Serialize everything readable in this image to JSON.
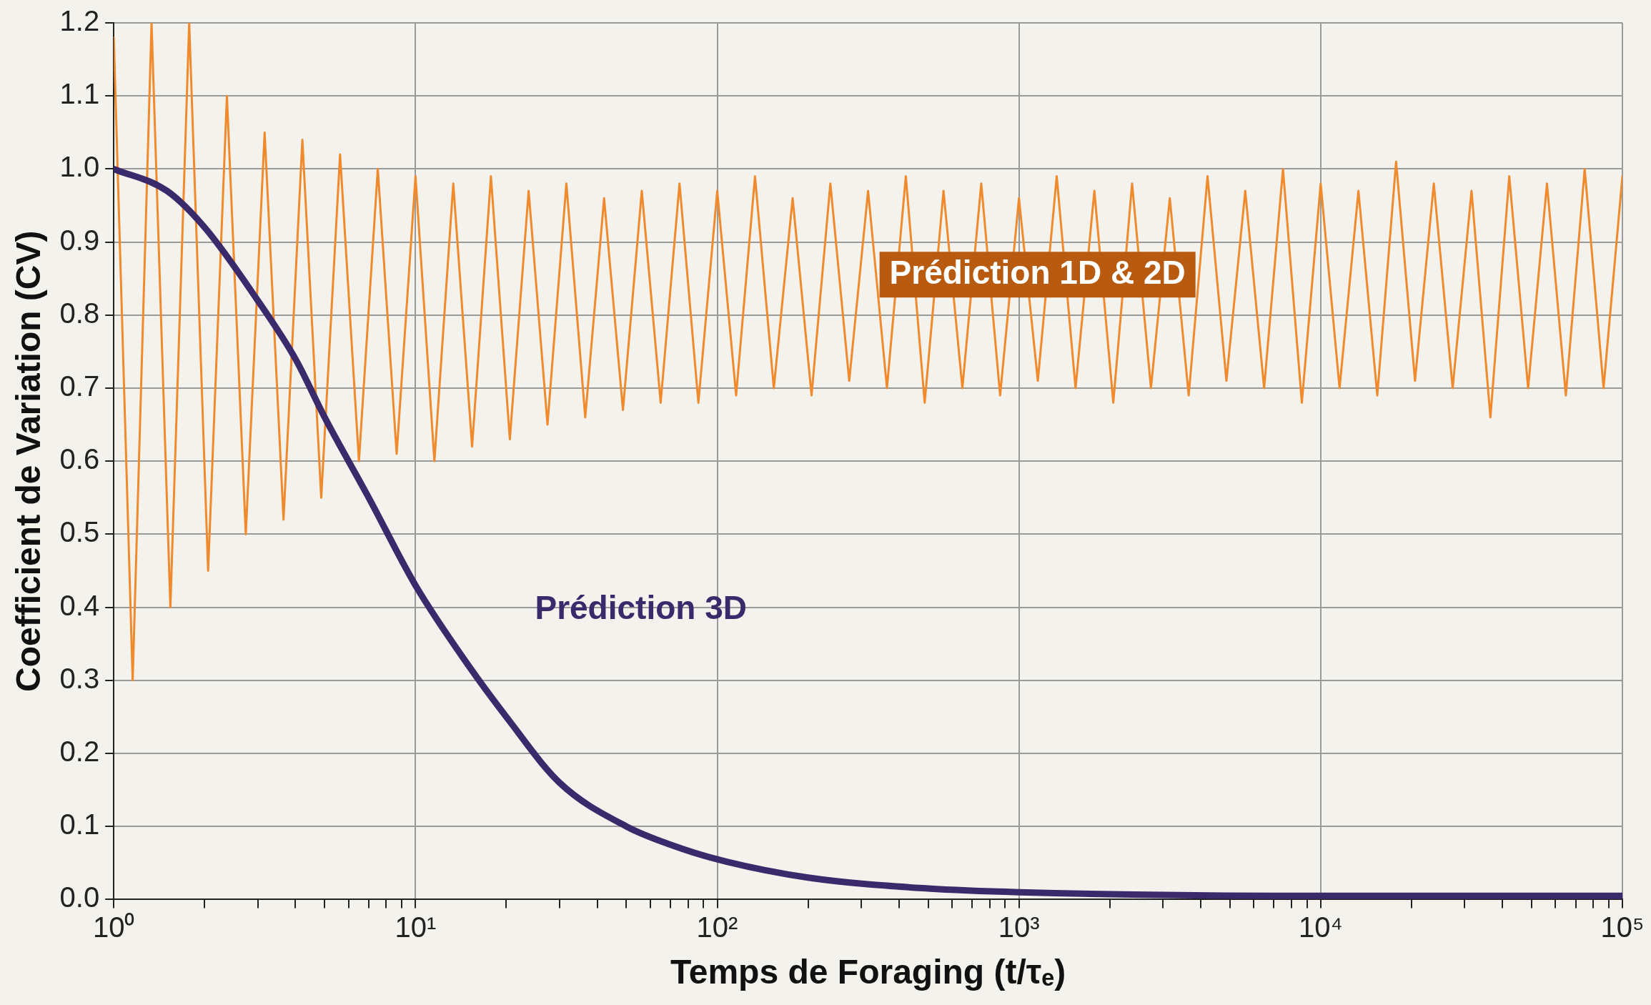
{
  "chart_data": {
    "type": "line",
    "xlabel": "Temps de Foraging (t/τₑ)",
    "ylabel": "Coefficient de Variation (CV)",
    "log": "x",
    "xlim": [
      1,
      100000
    ],
    "xticks": [
      {
        "value": 1,
        "label": "10⁰"
      },
      {
        "value": 2,
        "label": null
      },
      {
        "value": 3,
        "label": null
      },
      {
        "value": 4,
        "label": null
      },
      {
        "value": 5,
        "label": null
      },
      {
        "value": 6,
        "label": null
      },
      {
        "value": 7,
        "label": null
      },
      {
        "value": 8,
        "label": null
      },
      {
        "value": 9,
        "label": null
      },
      {
        "value": 10,
        "label": "10¹"
      },
      {
        "value": 20,
        "label": null
      },
      {
        "value": 30,
        "label": null
      },
      {
        "value": 40,
        "label": null
      },
      {
        "value": 50,
        "label": null
      },
      {
        "value": 60,
        "label": null
      },
      {
        "value": 70,
        "label": null
      },
      {
        "value": 80,
        "label": null
      },
      {
        "value": 90,
        "label": null
      },
      {
        "value": 100,
        "label": "10²"
      },
      {
        "value": 200,
        "label": null
      },
      {
        "value": 300,
        "label": null
      },
      {
        "value": 400,
        "label": null
      },
      {
        "value": 500,
        "label": null
      },
      {
        "value": 600,
        "label": null
      },
      {
        "value": 700,
        "label": null
      },
      {
        "value": 800,
        "label": null
      },
      {
        "value": 900,
        "label": null
      },
      {
        "value": 1000,
        "label": "10³"
      },
      {
        "value": 2000,
        "label": null
      },
      {
        "value": 3000,
        "label": null
      },
      {
        "value": 4000,
        "label": null
      },
      {
        "value": 5000,
        "label": null
      },
      {
        "value": 6000,
        "label": null
      },
      {
        "value": 7000,
        "label": null
      },
      {
        "value": 8000,
        "label": null
      },
      {
        "value": 9000,
        "label": null
      },
      {
        "value": 10000,
        "label": "10⁴"
      },
      {
        "value": 20000,
        "label": null
      },
      {
        "value": 30000,
        "label": null
      },
      {
        "value": 40000,
        "label": null
      },
      {
        "value": 50000,
        "label": null
      },
      {
        "value": 60000,
        "label": null
      },
      {
        "value": 70000,
        "label": null
      },
      {
        "value": 80000,
        "label": null
      },
      {
        "value": 90000,
        "label": null
      },
      {
        "value": 100000,
        "label": "10⁵"
      }
    ],
    "ylim": [
      0,
      1.2
    ],
    "yticks": [
      {
        "value": 0,
        "label": "0.0"
      },
      {
        "value": 0.1,
        "label": "0.1"
      },
      {
        "value": 0.2,
        "label": "0.2"
      },
      {
        "value": 0.3,
        "label": "0.3"
      },
      {
        "value": 0.4,
        "label": "0.4"
      },
      {
        "value": 0.5,
        "label": "0.5"
      },
      {
        "value": 0.6,
        "label": "0.6"
      },
      {
        "value": 0.7,
        "label": "0.7"
      },
      {
        "value": 0.8,
        "label": "0.8"
      },
      {
        "value": 0.9,
        "label": "0.9"
      },
      {
        "value": 1,
        "label": "1.0"
      },
      {
        "value": 1.1,
        "label": "1.1"
      },
      {
        "value": 1.2,
        "label": "1.2"
      }
    ],
    "grid": true,
    "legend": false,
    "marker": "none",
    "line_style": "solid",
    "x": [
      1,
      1.155,
      1.334,
      1.54,
      1.778,
      2.054,
      2.371,
      2.738,
      3.162,
      3.652,
      4.217,
      4.87,
      5.623,
      6.494,
      7.499,
      8.66,
      10,
      11.55,
      13.34,
      15.4,
      17.78,
      20.54,
      23.71,
      27.38,
      31.62,
      36.52,
      42.17,
      48.7,
      56.23,
      64.94,
      74.99,
      86.6,
      100,
      115.5,
      133.4,
      154,
      177.8,
      205.4,
      237.1,
      273.8,
      316.2,
      365.2,
      421.7,
      487,
      562.3,
      649.4,
      749.9,
      866,
      1000,
      1155,
      1334,
      1540,
      1778,
      2054,
      2371,
      2738,
      3162,
      3652,
      4217,
      4870,
      5623,
      6494,
      7499,
      8660,
      10000,
      11550,
      13340,
      15400,
      17780,
      20540,
      23710,
      27380,
      31620,
      36520,
      42170,
      48700,
      56230,
      64940,
      74990,
      86600,
      100000
    ],
    "series": [
      {
        "name": "Prédiction 1D & 2D",
        "color": "#f08a2c",
        "values": [
          1.18,
          0.3,
          1.2,
          0.4,
          1.2,
          0.45,
          1.1,
          0.5,
          1.05,
          0.52,
          1.04,
          0.55,
          1.02,
          0.6,
          1,
          0.61,
          0.99,
          0.6,
          0.98,
          0.62,
          0.99,
          0.63,
          0.97,
          0.65,
          0.98,
          0.66,
          0.96,
          0.67,
          0.97,
          0.68,
          0.98,
          0.68,
          0.97,
          0.69,
          0.99,
          0.7,
          0.96,
          0.69,
          0.98,
          0.71,
          0.97,
          0.7,
          0.99,
          0.68,
          0.97,
          0.7,
          0.98,
          0.69,
          0.96,
          0.71,
          0.99,
          0.7,
          0.97,
          0.68,
          0.98,
          0.7,
          0.96,
          0.69,
          0.99,
          0.71,
          0.97,
          0.7,
          1,
          0.68,
          0.98,
          0.7,
          0.97,
          0.69,
          1.01,
          0.71,
          0.98,
          0.7,
          0.97,
          0.66,
          0.99,
          0.7,
          0.98,
          0.69,
          1,
          0.7,
          0.99
        ]
      },
      {
        "name": "Prédiction 3D",
        "color": "#3b2a6b",
        "x": [
          1,
          1.5,
          2,
          3,
          4,
          5,
          7,
          10,
          15,
          20,
          30,
          50,
          70,
          100,
          200,
          500,
          1000,
          10000,
          100000
        ],
        "values": [
          1,
          0.97,
          0.92,
          0.82,
          0.74,
          0.66,
          0.55,
          0.43,
          0.32,
          0.25,
          0.16,
          0.1,
          0.075,
          0.055,
          0.03,
          0.015,
          0.01,
          0.005,
          0.005
        ]
      }
    ]
  }
}
